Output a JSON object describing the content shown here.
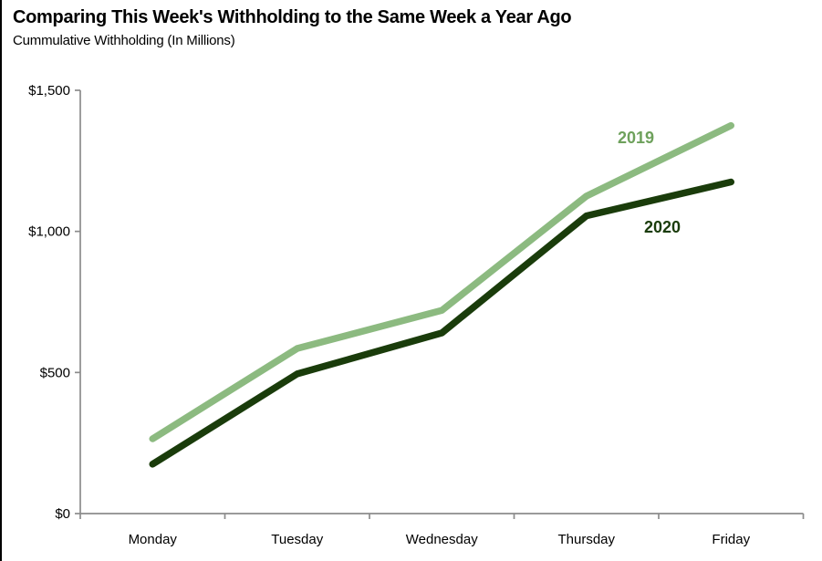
{
  "page": {
    "background": "#ffffff",
    "left_border_color": "#000000"
  },
  "header": {
    "title": "Comparing This Week's Withholding to the Same Week a Year Ago",
    "subtitle": "Cummulative Withholding (In Millions)"
  },
  "chart_data": {
    "type": "line",
    "title": "Comparing This Week's Withholding to the Same Week a Year Ago",
    "subtitle": "Cummulative Withholding (In Millions)",
    "categories": [
      "Monday",
      "Tuesday",
      "Wednesday",
      "Thursday",
      "Friday"
    ],
    "series": [
      {
        "name": "2019",
        "values": [
          265,
          585,
          720,
          1125,
          1375
        ],
        "color": "#8CBA80",
        "label_color": "#6EA15C"
      },
      {
        "name": "2020",
        "values": [
          175,
          495,
          640,
          1055,
          1175
        ],
        "color": "#1A3C0B",
        "label_color": "#1A3C0B"
      }
    ],
    "xlabel": "",
    "ylabel": "",
    "ylim": [
      0,
      1500
    ],
    "y_ticks": [
      {
        "value": 1500,
        "label": "$1,500"
      },
      {
        "value": 1000,
        "label": "$1,000"
      },
      {
        "value": 500,
        "label": "$500"
      },
      {
        "value": 0,
        "label": "$0"
      }
    ],
    "axis_color": "#8C8C8C",
    "grid": false,
    "legend_position": "inline-labels-near-line-end"
  }
}
